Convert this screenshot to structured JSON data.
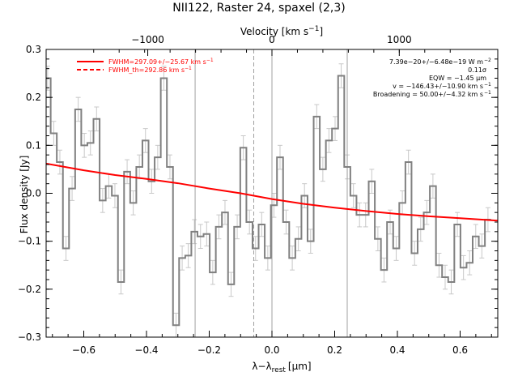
{
  "chart_data": {
    "type": "line",
    "title": "NII122, Raster 24, spaxel (2,3)",
    "xlabel": "λ−λ",
    "xlabel_sub": "rest",
    "xlabel_unit": "[μm]",
    "ylabel": "Flux density [Jy]",
    "top_axis_label": "Velocity [km s",
    "top_axis_label_sup": "−1",
    "top_axis_label_end": "]",
    "xlim": [
      -0.72,
      0.72
    ],
    "ylim": [
      -0.3,
      0.3
    ],
    "xticks": [
      -0.6,
      -0.4,
      -0.2,
      0.0,
      0.2,
      0.4,
      0.6
    ],
    "xtick_labels": [
      "−0.6",
      "−0.4",
      "−0.2",
      "0.0",
      "0.2",
      "0.4",
      "0.6"
    ],
    "yticks": [
      -0.3,
      -0.2,
      -0.1,
      0.0,
      0.1,
      0.2,
      0.3
    ],
    "ytick_labels": [
      "−0.3",
      "−0.2",
      "−0.1",
      "0.0",
      "0.1",
      "0.2",
      "0.3"
    ],
    "top_ticks": [
      {
        "x": -0.396,
        "label": "−1000"
      },
      {
        "x": 0.0,
        "label": "0"
      },
      {
        "x": 0.406,
        "label": "1000"
      }
    ],
    "vlines": [
      {
        "x": -0.245,
        "style": "solid"
      },
      {
        "x": -0.058,
        "style": "dashed"
      },
      {
        "x": 0.0,
        "style": "solid"
      },
      {
        "x": 0.24,
        "style": "solid"
      }
    ],
    "legend": [
      {
        "text": "FWHM=297.09+/−25.67 km s",
        "sup": "−1",
        "style": "solid"
      },
      {
        "text": "FWHM_th=292.86 km s",
        "sup": "−1",
        "style": "dashed"
      }
    ],
    "annotations": [
      {
        "text": "7.39e−20+/−6.48e−19 W m",
        "sup": "−2"
      },
      {
        "text": "0.11σ",
        "sup": ""
      },
      {
        "text": "EQW = −1.45 μm",
        "sup": ""
      },
      {
        "text": "v = −146.43+/−10.90 km s",
        "sup": "−1"
      },
      {
        "text": "Broadening = 50.00+/−4.32 km s",
        "sup": "−1"
      }
    ],
    "colors": {
      "data": "#808080",
      "errorbar": "#c8c8c8",
      "fit": "#ff0000",
      "vline": "#a0a0a0",
      "axis": "#000000"
    },
    "bin_width": 0.0195,
    "bin_start": -0.725,
    "series": [
      {
        "kind": "histogram",
        "values": [
          0.24,
          0.125,
          0.065,
          -0.115,
          0.01,
          0.175,
          0.1,
          0.105,
          0.155,
          -0.015,
          0.015,
          -0.005,
          -0.185,
          0.045,
          -0.02,
          0.055,
          0.11,
          0.025,
          0.075,
          0.24,
          0.055,
          -0.275,
          -0.135,
          -0.13,
          -0.08,
          -0.09,
          -0.085,
          -0.165,
          -0.07,
          -0.04,
          -0.19,
          -0.07,
          0.095,
          -0.06,
          -0.115,
          -0.065,
          -0.135,
          -0.025,
          0.075,
          -0.06,
          -0.135,
          -0.095,
          -0.005,
          -0.1,
          0.16,
          0.05,
          0.11,
          0.135,
          0.245,
          0.055,
          -0.005,
          -0.045,
          -0.045,
          0.025,
          -0.095,
          -0.16,
          -0.06,
          -0.115,
          -0.02,
          0.065,
          -0.125,
          -0.075,
          -0.04,
          0.015,
          -0.15,
          -0.175,
          -0.185,
          -0.065,
          -0.155,
          -0.145,
          -0.09,
          -0.11,
          -0.055
        ],
        "error": 0.025
      },
      {
        "kind": "fit",
        "x": [
          -0.72,
          -0.6,
          -0.5,
          -0.4,
          -0.3,
          -0.2,
          -0.1,
          0.0,
          0.1,
          0.2,
          0.3,
          0.4,
          0.5,
          0.6,
          0.72
        ],
        "y": [
          0.062,
          0.048,
          0.038,
          0.03,
          0.021,
          0.01,
          0.0,
          -0.012,
          -0.022,
          -0.03,
          -0.037,
          -0.043,
          -0.048,
          -0.052,
          -0.057
        ]
      }
    ]
  }
}
